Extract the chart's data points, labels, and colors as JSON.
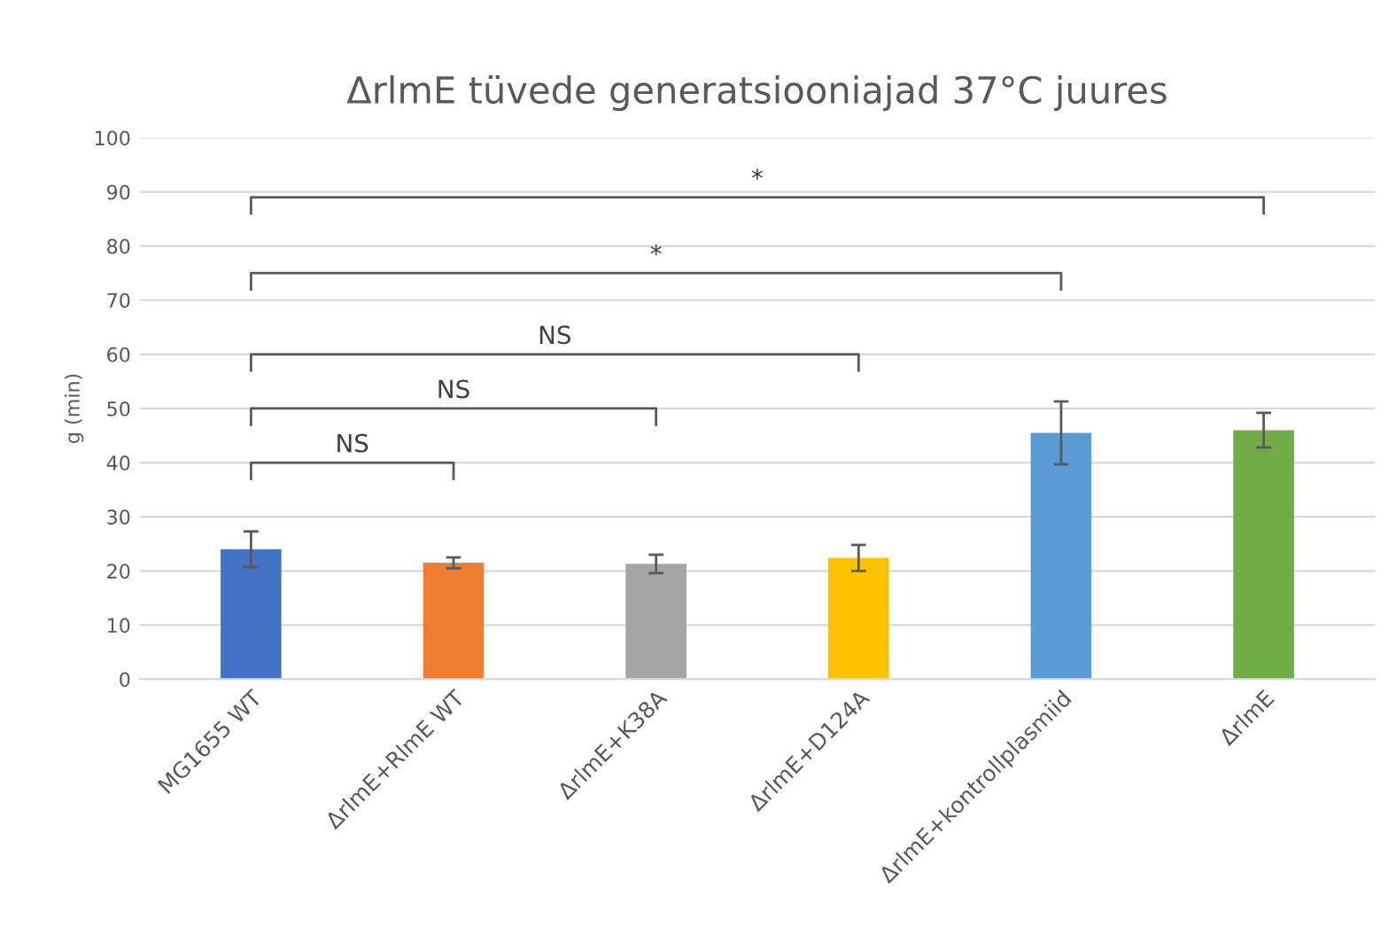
{
  "chart_data": {
    "type": "bar",
    "title": "ΔrlmE tüvede generatsiooniajad 37°C juures",
    "ylabel": "g (min)",
    "categories": [
      "MG1655 WT",
      "ΔrlmE+RlmE WT",
      "ΔrlmE+K38A",
      "ΔrlmE+D124A",
      "ΔrlmE+kontrollplasmiid",
      "ΔrlmE"
    ],
    "values": [
      24,
      21.5,
      21.3,
      22.4,
      45.5,
      46
    ],
    "errors": [
      3.3,
      1,
      1.7,
      2.4,
      5.8,
      3.2
    ],
    "colors": [
      "#4472c4",
      "#ed7d31",
      "#a5a5a5",
      "#ffc000",
      "#5b9bd5",
      "#70ad47"
    ],
    "ylim": [
      0,
      100
    ],
    "yticks": [
      0,
      10,
      20,
      30,
      40,
      50,
      60,
      70,
      80,
      90,
      100
    ],
    "grid": "y",
    "annotations": [
      "NS",
      "NS",
      "NS",
      "*",
      "*"
    ]
  }
}
